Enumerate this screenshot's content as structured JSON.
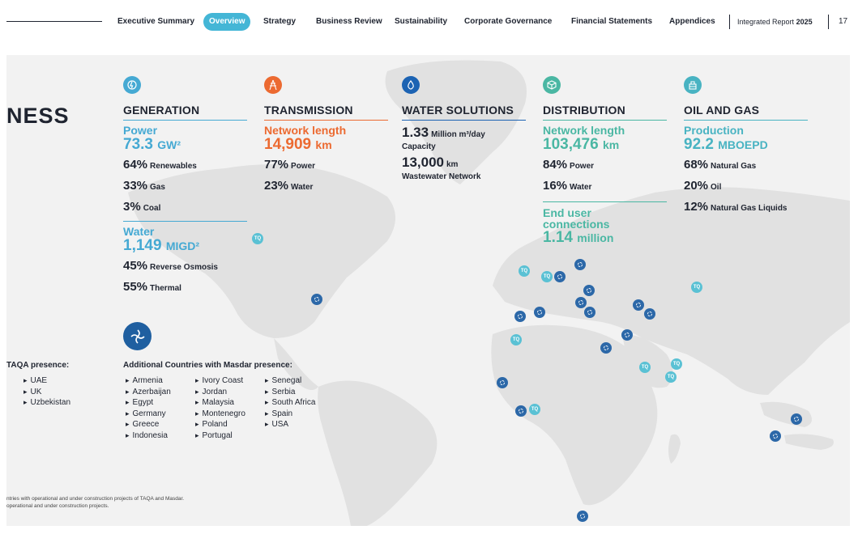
{
  "nav": {
    "items": [
      "Executive Summary",
      "Overview",
      "Strategy",
      "Business Review",
      "Sustainability",
      "Corporate Governance",
      "Financial Statements",
      "Appendices"
    ],
    "active": "Overview",
    "report_prefix": "Integrated Report",
    "report_year": "2025",
    "page_number": "17"
  },
  "section_title": "NESS",
  "generation": {
    "icon": "power-gas-icon",
    "title": "GENERATION",
    "power_label": "Power",
    "power_value": "73.3",
    "power_unit": "GW²",
    "power_shares": [
      {
        "pct": "64%",
        "label": "Renewables"
      },
      {
        "pct": "33%",
        "label": "Gas"
      },
      {
        "pct": "3%",
        "label": "Coal"
      }
    ],
    "water_label": "Water",
    "water_value": "1,149",
    "water_unit": "MIGD²",
    "water_shares": [
      {
        "pct": "45%",
        "label": "Reverse Osmosis"
      },
      {
        "pct": "55%",
        "label": "Thermal"
      }
    ]
  },
  "transmission": {
    "icon": "transmission-tower-icon",
    "title": "TRANSMISSION",
    "label": "Network length",
    "value": "14,909",
    "unit": "km",
    "shares": [
      {
        "pct": "77%",
        "label": "Power"
      },
      {
        "pct": "23%",
        "label": "Water"
      }
    ]
  },
  "water_solutions": {
    "icon": "water-drop-icon",
    "title": "WATER SOLUTIONS",
    "capacity_value": "1.33",
    "capacity_unit": "Million m³/day",
    "capacity_label": "Capacity",
    "network_value": "13,000",
    "network_unit": "km",
    "network_label": "Wastewater Network"
  },
  "distribution": {
    "icon": "distribution-box-icon",
    "title": "DISTRIBUTION",
    "label": "Network length",
    "value": "103,476",
    "unit": "km",
    "shares": [
      {
        "pct": "84%",
        "label": "Power"
      },
      {
        "pct": "16%",
        "label": "Water"
      }
    ],
    "connections_label_1": "End user",
    "connections_label_2": "connections",
    "connections_value": "1.14",
    "connections_unit": "million"
  },
  "oil_gas": {
    "icon": "oil-rig-icon",
    "title": "OIL AND GAS",
    "label": "Production",
    "value": "92.2",
    "unit": "MBOEPD",
    "shares": [
      {
        "pct": "68%",
        "label": "Natural Gas"
      },
      {
        "pct": "20%",
        "label": "Oil"
      },
      {
        "pct": "12%",
        "label": "Natural Gas Liquids"
      }
    ]
  },
  "taqa_presence": {
    "title": "TAQA presence:",
    "countries": [
      "UAE",
      "UK",
      "Uzbekistan"
    ]
  },
  "masdar_presence": {
    "icon": "masdar-logo-icon",
    "title": "Additional Countries with Masdar presence:",
    "col1": [
      "Armenia",
      "Azerbaijan",
      "Egypt",
      "Germany",
      "Greece",
      "Indonesia"
    ],
    "col2": [
      "Ivory Coast",
      "Jordan",
      "Malaysia",
      "Montenegro",
      "Poland",
      "Portugal"
    ],
    "col3": [
      "Senegal",
      "Serbia",
      "South Africa",
      "Spain",
      "USA"
    ]
  },
  "footnotes": [
    "ntries with operational and under construction projects of TAQA and Masdar.",
    " operational and under construction projects."
  ],
  "marker_text": "TQ",
  "colors": {
    "generation": "#45a9d3",
    "transmission": "#ec6a31",
    "water_solutions": "#1c63b3",
    "distribution": "#4ab7a3",
    "oil_gas": "#48b3c2",
    "masdar": "#2c68a8",
    "taqa": "#5ac1d4"
  }
}
